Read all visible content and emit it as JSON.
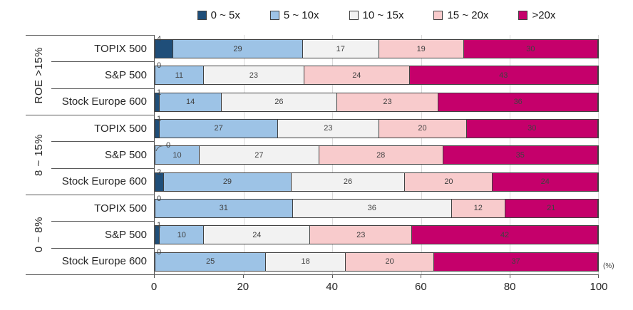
{
  "chart_data": {
    "type": "bar",
    "orientation": "horizontal-stacked",
    "title": "",
    "xlabel": "(%)",
    "xlim": [
      0,
      100
    ],
    "xticks": [
      0,
      20,
      40,
      60,
      80,
      100
    ],
    "grid": true,
    "legend_position": "top",
    "series_names": [
      "0 ~ 5x",
      "5 ~ 10x",
      "10 ~ 15x",
      "15 ~ 20x",
      ">20x"
    ],
    "series_colors": [
      "#1F4E79",
      "#9DC3E6",
      "#F2F2F2",
      "#F8CBCC",
      "#C5006B"
    ],
    "groups": [
      {
        "label": "ROE >15%",
        "rows": [
          {
            "label": "TOPIX 500",
            "values": [
              4,
              29,
              17,
              19,
              30
            ],
            "label_callout": false
          },
          {
            "label": "S&P 500",
            "values": [
              0,
              11,
              23,
              24,
              43
            ],
            "label_callout": false
          },
          {
            "label": "Stock Europe 600",
            "values": [
              1,
              14,
              26,
              23,
              36
            ],
            "label_callout": false
          }
        ]
      },
      {
        "label": "8 ~ 15%",
        "rows": [
          {
            "label": "TOPIX 500",
            "values": [
              1,
              27,
              23,
              20,
              30
            ],
            "label_callout": false
          },
          {
            "label": "S&P 500",
            "values": [
              0,
              10,
              27,
              28,
              35
            ],
            "label_callout": true
          },
          {
            "label": "Stock Europe 600",
            "values": [
              2,
              29,
              26,
              20,
              24
            ],
            "label_callout": false
          }
        ]
      },
      {
        "label": "0 ~ 8%",
        "rows": [
          {
            "label": "TOPIX 500",
            "values": [
              0,
              31,
              36,
              12,
              21
            ],
            "label_callout": false
          },
          {
            "label": "S&P 500",
            "values": [
              1,
              10,
              24,
              23,
              42
            ],
            "label_callout": false
          },
          {
            "label": "Stock Europe 600",
            "values": [
              0,
              25,
              18,
              20,
              37
            ],
            "label_callout": false
          }
        ]
      }
    ]
  },
  "colors": {
    "segment_border": "#404040",
    "axis_line": "#595959",
    "gridline": "#d9d9d9",
    "label_text": "#262626",
    "value_text": "#404040"
  }
}
